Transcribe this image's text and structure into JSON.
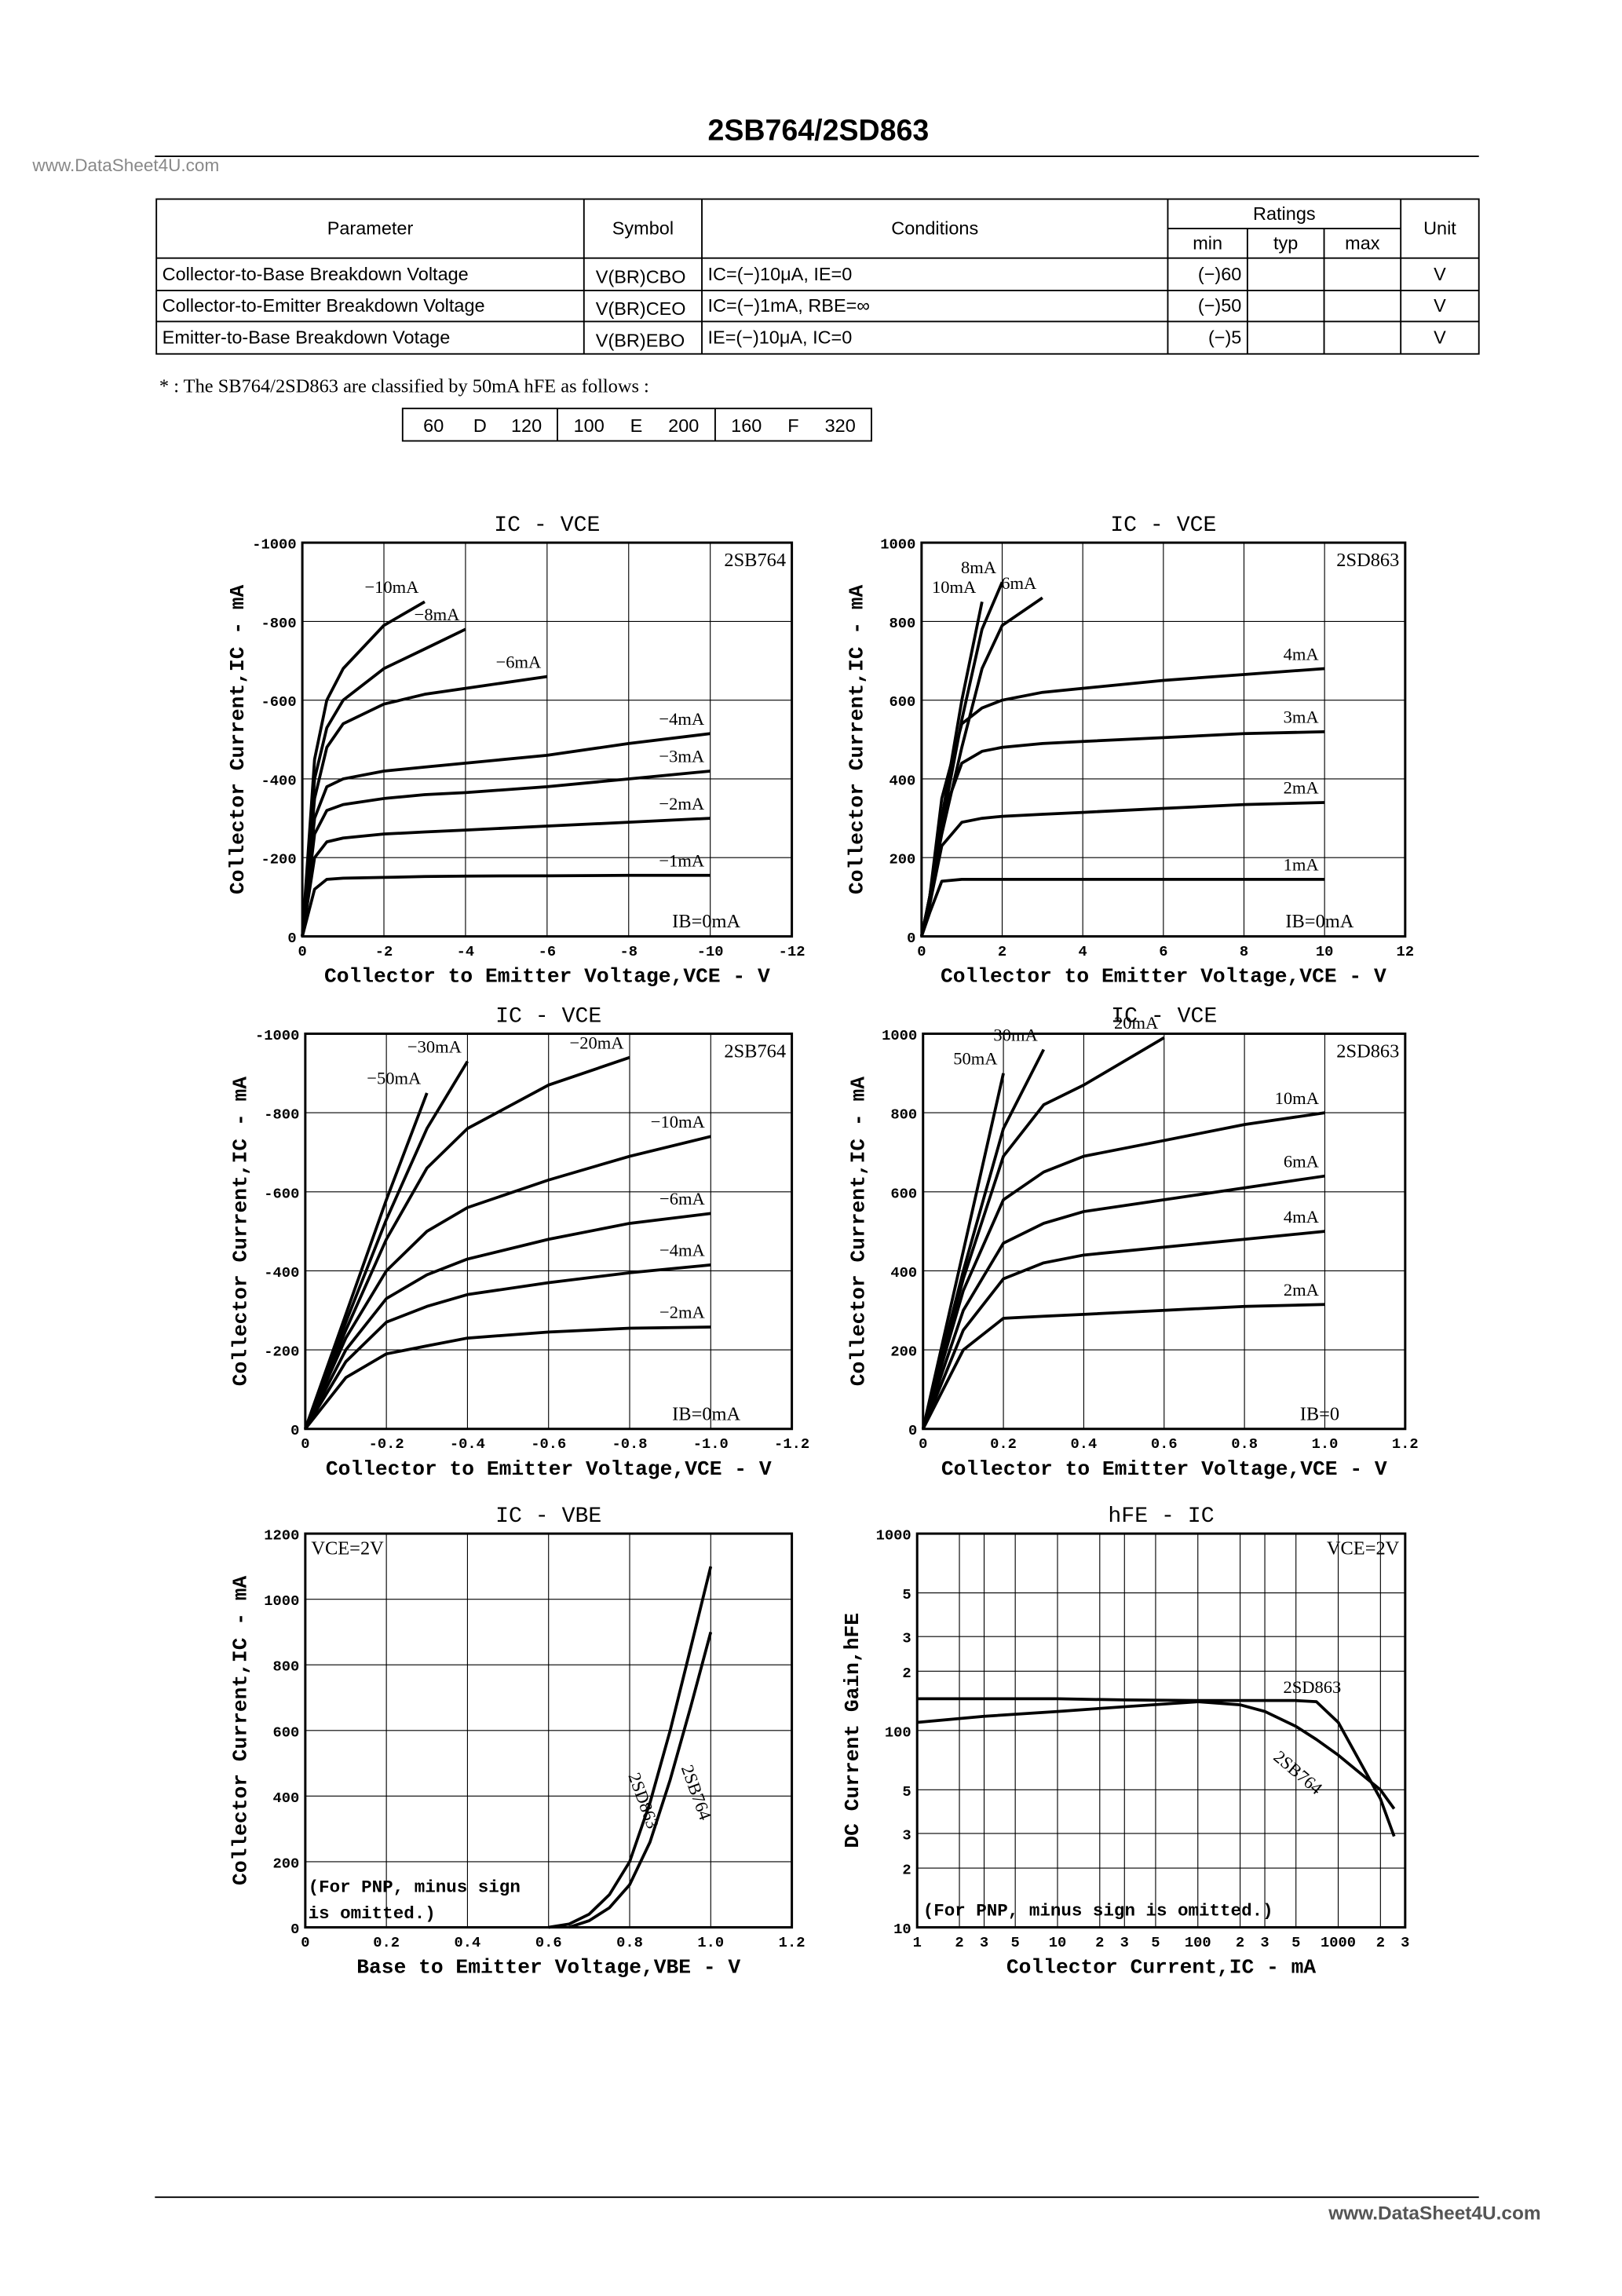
{
  "header": {
    "title": "2SB764/2SD863",
    "watermark": "www.DataSheet4U.com"
  },
  "table": {
    "headers": [
      "Parameter",
      "Symbol",
      "Conditions",
      "Unit"
    ],
    "ratings": "Ratings",
    "subheaders": [
      "min",
      "typ",
      "max"
    ],
    "rows": [
      {
        "parameter": "Collector-to-Base Breakdown Voltage",
        "symbol": "V(BR)CBO",
        "conditions": "IC=(−)10μA, IE=0",
        "min": "(−)60",
        "unit": "V"
      },
      {
        "parameter": "Collector-to-Emitter Breakdown Voltage",
        "symbol": "V(BR)CEO",
        "conditions": "IC=(−)1mA, RBE=∞",
        "min": "(−)50",
        "unit": "V"
      },
      {
        "parameter": "Emitter-to-Base Breakdown Votage",
        "symbol": "V(BR)EBO",
        "conditions": "IE=(−)10μA, IC=0",
        "min": "(−)5",
        "unit": "V"
      }
    ]
  },
  "note": "* : The SB764/2SD863 are classified by 50mA hFE as follows :",
  "hfe_classes": [
    [
      "60",
      "D",
      "120"
    ],
    [
      "100",
      "E",
      "200"
    ],
    [
      "160",
      "F",
      "320"
    ]
  ],
  "chart_data": [
    {
      "type": "line",
      "title": "IC - VCE",
      "xlabel": "Collector to Emitter Voltage,VCE - V",
      "ylabel": "Collector Current,IC - mA",
      "label": "2SB764",
      "note": "IB=0mA",
      "color": "#000",
      "grid": true,
      "xlim": [
        0,
        -12
      ],
      "ylim": [
        0,
        -1000
      ],
      "xticks": [
        0,
        -2,
        -4,
        -6,
        -8,
        -10,
        -12
      ],
      "yticks": [
        0,
        -200,
        -400,
        -600,
        -800,
        -1000
      ],
      "x": [
        0,
        -0.3,
        -0.6,
        -1,
        -2,
        -3,
        -4,
        -6,
        -8,
        -10
      ],
      "series": [
        {
          "name": "−10mA",
          "values": [
            0,
            -450,
            -600,
            -680,
            -790,
            -850,
            null,
            null,
            null,
            null
          ]
        },
        {
          "name": "−8mA",
          "values": [
            0,
            -400,
            -530,
            -600,
            -680,
            -730,
            -780,
            null,
            null,
            null
          ]
        },
        {
          "name": "−6mA",
          "values": [
            0,
            -350,
            -480,
            -540,
            -590,
            -615,
            -630,
            -660,
            null,
            null
          ]
        },
        {
          "name": "−4mA",
          "values": [
            0,
            -300,
            -380,
            -400,
            -420,
            -430,
            -440,
            -460,
            -490,
            -515
          ]
        },
        {
          "name": "−3mA",
          "values": [
            0,
            -260,
            -320,
            -335,
            -350,
            -360,
            -365,
            -380,
            -400,
            -420
          ]
        },
        {
          "name": "−2mA",
          "values": [
            0,
            -200,
            -240,
            -250,
            -260,
            -265,
            -270,
            -280,
            -290,
            -300
          ]
        },
        {
          "name": "−1mA",
          "values": [
            0,
            -120,
            -145,
            -148,
            -150,
            -152,
            -153,
            -154,
            -155,
            -155
          ]
        }
      ]
    },
    {
      "type": "line",
      "title": "IC - VCE",
      "xlabel": "Collector to Emitter Voltage,VCE - V",
      "ylabel": "Collector Current,IC - mA",
      "label": "2SD863",
      "note": "IB=0mA",
      "color": "#000",
      "grid": true,
      "xlim": [
        0,
        12
      ],
      "ylim": [
        0,
        1000
      ],
      "xticks": [
        0,
        2,
        4,
        6,
        8,
        10,
        12
      ],
      "yticks": [
        0,
        200,
        400,
        600,
        800,
        1000
      ],
      "x": [
        0,
        0.2,
        0.5,
        1,
        1.5,
        2,
        3,
        4,
        6,
        8,
        10
      ],
      "series": [
        {
          "name": "10mA",
          "values": [
            0,
            100,
            300,
            600,
            850,
            null,
            null,
            null,
            null,
            null,
            null
          ]
        },
        {
          "name": "8mA",
          "values": [
            0,
            100,
            280,
            550,
            780,
            900,
            null,
            null,
            null,
            null,
            null
          ]
        },
        {
          "name": "6mA",
          "values": [
            0,
            100,
            260,
            480,
            680,
            790,
            860,
            null,
            null,
            null,
            null
          ]
        },
        {
          "name": "4mA",
          "values": [
            0,
            100,
            350,
            540,
            580,
            600,
            620,
            630,
            650,
            665,
            680
          ]
        },
        {
          "name": "3mA",
          "values": [
            0,
            100,
            300,
            440,
            470,
            480,
            490,
            495,
            505,
            515,
            520
          ]
        },
        {
          "name": "2mA",
          "values": [
            0,
            80,
            230,
            290,
            300,
            305,
            310,
            315,
            325,
            335,
            340
          ]
        },
        {
          "name": "1mA",
          "values": [
            0,
            60,
            140,
            145,
            145,
            145,
            145,
            145,
            145,
            145,
            145
          ]
        }
      ]
    },
    {
      "type": "line",
      "title": "IC - VCE",
      "xlabel": "Collector to Emitter Voltage,VCE - V",
      "ylabel": "Collector Current,IC - mA",
      "label": "2SB764",
      "note": "IB=0mA",
      "color": "#000",
      "grid": true,
      "xlim": [
        0,
        -1.2
      ],
      "ylim": [
        0,
        -1000
      ],
      "xticks": [
        0,
        -0.2,
        -0.4,
        -0.6,
        -0.8,
        {
          "value": -1,
          "label": "-1.0"
        },
        -1.2
      ],
      "yticks": [
        0,
        -200,
        -400,
        -600,
        -800,
        -1000
      ],
      "x": [
        0,
        -0.1,
        -0.2,
        -0.3,
        -0.4,
        -0.6,
        -0.8,
        -1
      ],
      "series": [
        {
          "name": "−50mA",
          "values": [
            0,
            -290,
            -580,
            -850,
            null,
            null,
            null,
            null
          ]
        },
        {
          "name": "−30mA",
          "values": [
            0,
            -270,
            -530,
            -760,
            -930,
            null,
            null,
            null
          ]
        },
        {
          "name": "−20mA",
          "values": [
            0,
            -250,
            -480,
            -660,
            -760,
            -870,
            -940,
            null
          ]
        },
        {
          "name": "−10mA",
          "values": [
            0,
            -230,
            -400,
            -500,
            -560,
            -630,
            -690,
            -740
          ]
        },
        {
          "name": "−6mA",
          "values": [
            0,
            -200,
            -330,
            -390,
            -430,
            -480,
            -520,
            -545
          ]
        },
        {
          "name": "−4mA",
          "values": [
            0,
            -170,
            -270,
            -310,
            -340,
            -370,
            -395,
            -415
          ]
        },
        {
          "name": "−2mA",
          "values": [
            0,
            -130,
            -190,
            -210,
            -230,
            -245,
            -255,
            -258
          ]
        }
      ]
    },
    {
      "type": "line",
      "title": "IC - VCE",
      "xlabel": "Collector to Emitter Voltage,VCE - V",
      "ylabel": "Collector Current,IC - mA",
      "label": "2SD863",
      "note": "IB=0",
      "color": "#000",
      "grid": true,
      "xlim": [
        0,
        1.2
      ],
      "ylim": [
        0,
        1000
      ],
      "xticks": [
        0,
        0.2,
        0.4,
        0.6,
        0.8,
        {
          "value": 1,
          "label": "1.0"
        },
        1.2
      ],
      "yticks": [
        0,
        200,
        400,
        600,
        800,
        1000
      ],
      "x": [
        0,
        0.1,
        0.2,
        0.3,
        0.4,
        0.6,
        0.8,
        1
      ],
      "series": [
        {
          "name": "50mA",
          "values": [
            0,
            450,
            900,
            null,
            null,
            null,
            null,
            null
          ]
        },
        {
          "name": "30mA",
          "values": [
            0,
            400,
            760,
            960,
            null,
            null,
            null,
            null
          ]
        },
        {
          "name": "20mA",
          "values": [
            0,
            380,
            690,
            820,
            870,
            990,
            null,
            null
          ]
        },
        {
          "name": "10mA",
          "values": [
            0,
            350,
            580,
            650,
            690,
            730,
            770,
            800
          ]
        },
        {
          "name": "6mA",
          "values": [
            0,
            300,
            470,
            520,
            550,
            580,
            610,
            640
          ]
        },
        {
          "name": "4mA",
          "values": [
            0,
            250,
            380,
            420,
            440,
            460,
            480,
            500
          ]
        },
        {
          "name": "2mA",
          "values": [
            0,
            200,
            280,
            285,
            290,
            300,
            310,
            315
          ]
        }
      ]
    },
    {
      "type": "line",
      "title": "IC - VBE",
      "xlabel": "Base to Emitter Voltage,VBE - V",
      "ylabel": "Collector Current,IC - mA",
      "condition": "VCE=2V",
      "note_lines": [
        "(For PNP, minus sign",
        "is omitted.)"
      ],
      "color": "#000",
      "grid": true,
      "xlim": [
        0,
        1.2
      ],
      "ylim": [
        0,
        1200
      ],
      "xticks": [
        0,
        0.2,
        0.4,
        0.6,
        0.8,
        {
          "value": 1,
          "label": "1.0"
        },
        1.2
      ],
      "yticks": [
        0,
        200,
        400,
        600,
        800,
        1000,
        1200
      ],
      "x": [
        0.6,
        0.65,
        0.7,
        0.75,
        0.8,
        0.85,
        0.9,
        0.95,
        1
      ],
      "series": [
        {
          "name": "2SD863",
          "values": [
            0,
            10,
            40,
            100,
            200,
            380,
            600,
            850,
            1100
          ]
        },
        {
          "name": "2SB764",
          "values": [
            null,
            0,
            20,
            60,
            130,
            260,
            450,
            670,
            900
          ]
        }
      ]
    },
    {
      "type": "line",
      "title": "hFE - IC",
      "xlabel": "Collector Current,IC - mA",
      "ylabel": "DC Current Gain,hFE",
      "condition": "VCE=2V",
      "note": "(For PNP, minus sign is omitted.)",
      "color": "#000",
      "grid": true,
      "log_x": true,
      "log_y": true,
      "xlim": [
        1,
        3000
      ],
      "ylim": [
        10,
        1000
      ],
      "xticks": [
        1,
        {
          "value": 2,
          "label": "2"
        },
        {
          "value": 3,
          "label": "3"
        },
        {
          "value": 5,
          "label": "5"
        },
        10,
        {
          "value": 20,
          "label": "2"
        },
        {
          "value": 30,
          "label": "3"
        },
        {
          "value": 50,
          "label": "5"
        },
        100,
        {
          "value": 200,
          "label": "2"
        },
        {
          "value": 300,
          "label": "3"
        },
        {
          "value": 500,
          "label": "5"
        },
        1000,
        {
          "value": 2000,
          "label": "2"
        },
        {
          "value": 3000,
          "label": "3"
        }
      ],
      "yticks": [
        10,
        {
          "value": 20,
          "label": "2"
        },
        {
          "value": 30,
          "label": "3"
        },
        {
          "value": 50,
          "label": "5"
        },
        100,
        {
          "value": 200,
          "label": "2"
        },
        {
          "value": 300,
          "label": "3"
        },
        {
          "value": 500,
          "label": "5"
        },
        1000
      ],
      "x": [
        1,
        3,
        10,
        30,
        100,
        200,
        300,
        500,
        700,
        1000,
        2000,
        2500
      ],
      "series": [
        {
          "name": "2SD863",
          "values": [
            145,
            145,
            145,
            143,
            142,
            142,
            142,
            142,
            140,
            110,
            45,
            29
          ]
        },
        {
          "name": "2SB764",
          "values": [
            110,
            118,
            125,
            132,
            140,
            135,
            125,
            105,
            90,
            75,
            50,
            40
          ]
        }
      ]
    }
  ]
}
